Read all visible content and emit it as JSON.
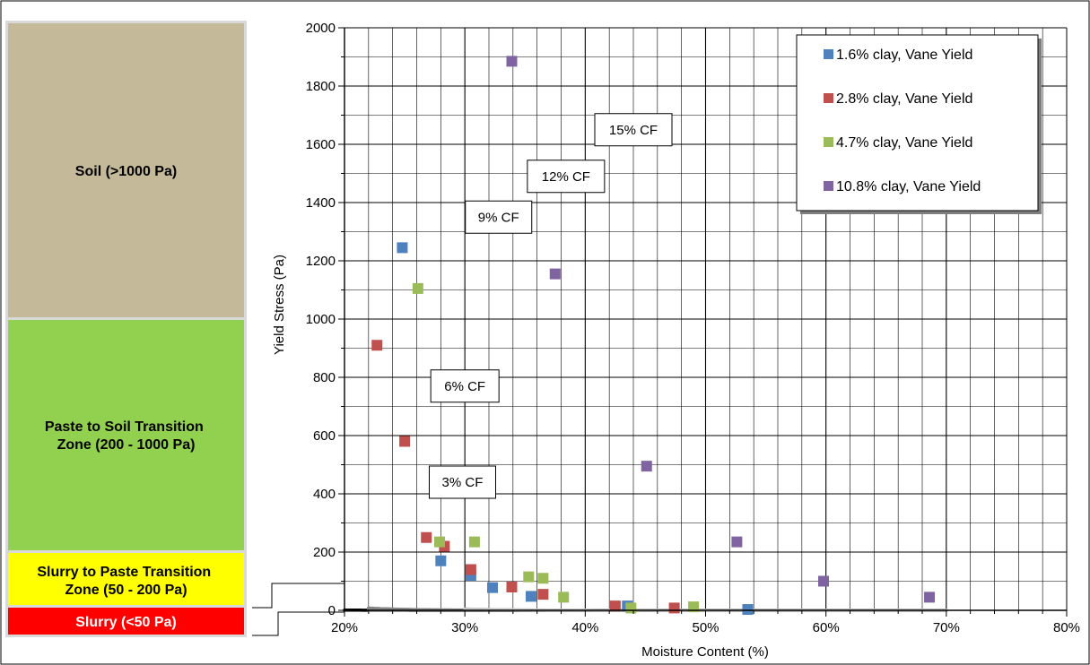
{
  "zones": [
    {
      "label": "Soil (>1000 Pa)",
      "fill": "#c4b998"
    },
    {
      "label_lines": [
        "Paste to Soil Transition",
        "Zone (200 - 1000 Pa)"
      ],
      "fill": "#92d050"
    },
    {
      "label_lines": [
        "Slurry to Paste Transition",
        "Zone (50 - 200 Pa)"
      ],
      "fill": "#ffff00"
    },
    {
      "label": "Slurry (<50 Pa)",
      "fill": "#ff0000"
    }
  ],
  "chart_data": {
    "type": "scatter",
    "xlabel": "Moisture Content (%)",
    "ylabel": "Yield Stress (Pa)",
    "xlim": [
      20,
      80
    ],
    "ylim": [
      0,
      2000
    ],
    "x_ticks": [
      "20%",
      "30%",
      "40%",
      "50%",
      "60%",
      "70%",
      "80%"
    ],
    "y_ticks": [
      "0",
      "200",
      "400",
      "600",
      "800",
      "1000",
      "1200",
      "1400",
      "1600",
      "1800",
      "2000"
    ],
    "grid": true,
    "legend_position": "top-right",
    "series": [
      {
        "name": "1.6% clay, Vane Yield",
        "color": "#4f81bd",
        "points": [
          [
            24.8,
            1245
          ],
          [
            28.0,
            170
          ],
          [
            30.5,
            120
          ],
          [
            32.3,
            78
          ],
          [
            35.5,
            48
          ],
          [
            43.5,
            15
          ],
          [
            53.5,
            3
          ]
        ]
      },
      {
        "name": "2.8% clay, Vane Yield",
        "color": "#c0504d",
        "points": [
          [
            22.7,
            910
          ],
          [
            25.0,
            580
          ],
          [
            26.8,
            250
          ],
          [
            28.3,
            220
          ],
          [
            30.5,
            140
          ],
          [
            33.9,
            80
          ],
          [
            36.5,
            55
          ],
          [
            42.5,
            15
          ],
          [
            47.4,
            8
          ]
        ]
      },
      {
        "name": "4.7% clay, Vane Yield",
        "color": "#9bbb59",
        "points": [
          [
            26.1,
            1105
          ],
          [
            27.9,
            235
          ],
          [
            30.8,
            235
          ],
          [
            35.3,
            115
          ],
          [
            36.5,
            110
          ],
          [
            38.2,
            45
          ],
          [
            43.8,
            8
          ],
          [
            49.0,
            12
          ]
        ]
      },
      {
        "name": "10.8% clay, Vane Yield",
        "color": "#8064a2",
        "points": [
          [
            33.9,
            1885
          ],
          [
            37.5,
            1155
          ],
          [
            45.1,
            495
          ],
          [
            52.6,
            235
          ],
          [
            59.8,
            100
          ],
          [
            68.6,
            45
          ]
        ]
      }
    ],
    "curves": [
      {
        "label": "3% CF",
        "color": "#000000",
        "a": 1.45e-05,
        "n": 5.6,
        "x_start": 20
      },
      {
        "label": "6% CF",
        "color": "#6b6b6b",
        "a": 4e-05,
        "n": 5.6,
        "x_start": 22
      },
      {
        "label": "9% CF",
        "color": "#7a7a7a",
        "a": 0.000115,
        "n": 5.6,
        "x_start": 22
      },
      {
        "label": "12% CF",
        "color": "#858585",
        "a": 0.0003,
        "n": 5.6,
        "x_start": 22
      },
      {
        "label": "15% CF",
        "color": "#c6c6c6",
        "a": 0.00138,
        "n": 5.6,
        "x_start": 30
      }
    ]
  }
}
